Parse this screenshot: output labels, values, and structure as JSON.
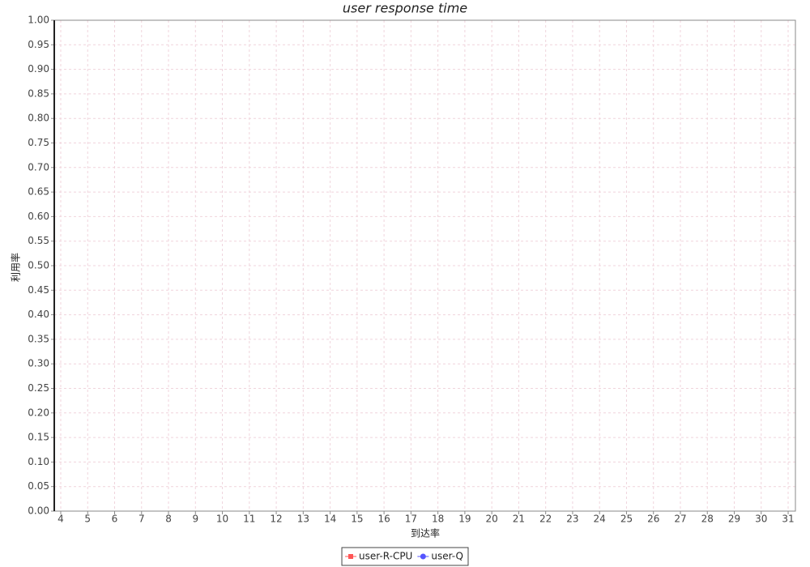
{
  "chart_data": {
    "type": "line",
    "title": "user response time",
    "x_label": "到达率",
    "y_label": "利用率",
    "series": [
      {
        "name": "user-R-CPU",
        "color": "#ff5555",
        "marker": "square",
        "x": [],
        "values": []
      },
      {
        "name": "user-Q",
        "color": "#5555ff",
        "marker": "circle",
        "x": [],
        "values": []
      }
    ],
    "xlim": [
      3.76,
      31.27
    ],
    "xticks": [
      4,
      5,
      6,
      7,
      8,
      9,
      10,
      11,
      12,
      13,
      14,
      15,
      16,
      17,
      18,
      19,
      20,
      21,
      22,
      23,
      24,
      25,
      26,
      27,
      28,
      29,
      30,
      31
    ],
    "ylim": [
      0,
      1
    ],
    "yticks": [
      {
        "value": 0,
        "label": "0.00"
      },
      {
        "value": 0.05,
        "label": "0.05"
      },
      {
        "value": 0.1,
        "label": "0.10"
      },
      {
        "value": 0.15,
        "label": "0.15"
      },
      {
        "value": 0.2,
        "label": "0.20"
      },
      {
        "value": 0.25,
        "label": "0.25"
      },
      {
        "value": 0.3,
        "label": "0.30"
      },
      {
        "value": 0.35,
        "label": "0.35"
      },
      {
        "value": 0.4,
        "label": "0.40"
      },
      {
        "value": 0.45,
        "label": "0.45"
      },
      {
        "value": 0.5,
        "label": "0.50"
      },
      {
        "value": 0.55,
        "label": "0.55"
      },
      {
        "value": 0.6,
        "label": "0.60"
      },
      {
        "value": 0.65,
        "label": "0.65"
      },
      {
        "value": 0.7,
        "label": "0.70"
      },
      {
        "value": 0.75,
        "label": "0.75"
      },
      {
        "value": 0.8,
        "label": "0.80"
      },
      {
        "value": 0.85,
        "label": "0.85"
      },
      {
        "value": 0.9,
        "label": "0.90"
      },
      {
        "value": 0.95,
        "label": "0.95"
      },
      {
        "value": 1,
        "label": "1.00"
      }
    ],
    "grid": true,
    "legend": "bottom"
  }
}
